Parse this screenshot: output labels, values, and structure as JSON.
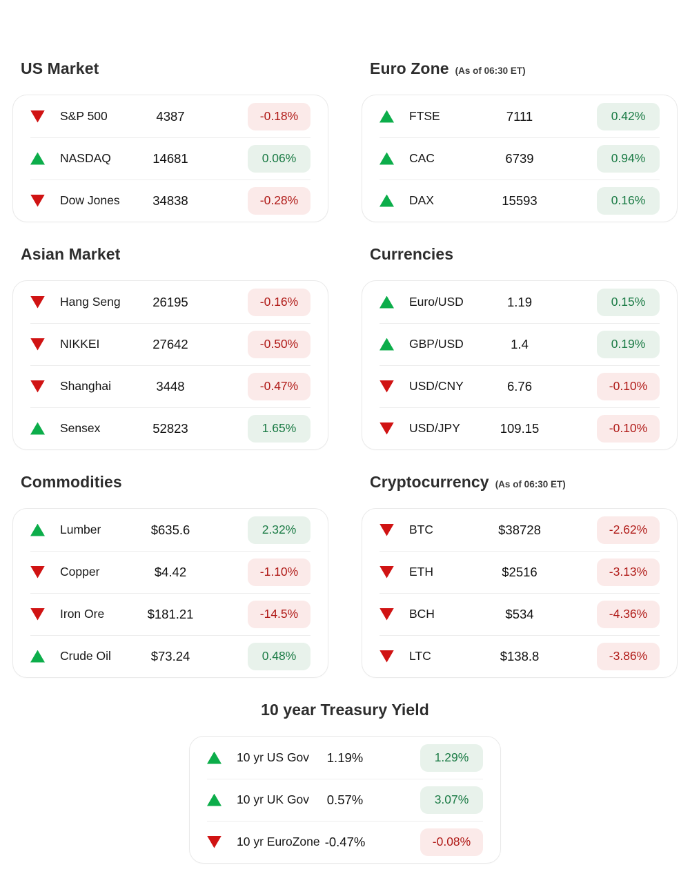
{
  "colors": {
    "up_icon": "#0CAD4A",
    "down_icon": "#D01313",
    "badge_up_bg": "#E8F2EB",
    "badge_up_text": "#1B7B45",
    "badge_down_bg": "#FBEAE9",
    "badge_down_text": "#B01A17"
  },
  "sections": [
    {
      "title": "US Market",
      "subtitle": "",
      "rows": [
        {
          "direction": "down",
          "label": "S&P 500",
          "value": "4387",
          "change": "-0.18%"
        },
        {
          "direction": "up",
          "label": "NASDAQ",
          "value": "14681",
          "change": "0.06%"
        },
        {
          "direction": "down",
          "label": "Dow Jones",
          "value": "34838",
          "change": "-0.28%"
        }
      ]
    },
    {
      "title": "Euro Zone",
      "subtitle": "(As of 06:30 ET)",
      "rows": [
        {
          "direction": "up",
          "label": "FTSE",
          "value": "7111",
          "change": "0.42%"
        },
        {
          "direction": "up",
          "label": "CAC",
          "value": "6739",
          "change": "0.94%"
        },
        {
          "direction": "up",
          "label": "DAX",
          "value": "15593",
          "change": "0.16%"
        }
      ]
    },
    {
      "title": "Asian Market",
      "subtitle": "",
      "rows": [
        {
          "direction": "down",
          "label": "Hang Seng",
          "value": "26195",
          "change": "-0.16%"
        },
        {
          "direction": "down",
          "label": "NIKKEI",
          "value": "27642",
          "change": "-0.50%"
        },
        {
          "direction": "down",
          "label": "Shanghai",
          "value": "3448",
          "change": "-0.47%"
        },
        {
          "direction": "up",
          "label": "Sensex",
          "value": "52823",
          "change": "1.65%"
        }
      ]
    },
    {
      "title": "Currencies",
      "subtitle": "",
      "rows": [
        {
          "direction": "up",
          "label": "Euro/USD",
          "value": "1.19",
          "change": "0.15%"
        },
        {
          "direction": "up",
          "label": "GBP/USD",
          "value": "1.4",
          "change": "0.19%"
        },
        {
          "direction": "down",
          "label": "USD/CNY",
          "value": "6.76",
          "change": "-0.10%"
        },
        {
          "direction": "down",
          "label": "USD/JPY",
          "value": "109.15",
          "change": "-0.10%"
        }
      ]
    },
    {
      "title": "Commodities",
      "subtitle": "",
      "rows": [
        {
          "direction": "up",
          "label": "Lumber",
          "value": "$635.6",
          "change": "2.32%"
        },
        {
          "direction": "down",
          "label": "Copper",
          "value": "$4.42",
          "change": "-1.10%"
        },
        {
          "direction": "down",
          "label": "Iron Ore",
          "value": "$181.21",
          "change": "-14.5%"
        },
        {
          "direction": "up",
          "label": "Crude Oil",
          "value": "$73.24",
          "change": "0.48%"
        }
      ]
    },
    {
      "title": "Cryptocurrency",
      "subtitle": "(As of 06:30 ET)",
      "rows": [
        {
          "direction": "down",
          "label": "BTC",
          "value": "$38728",
          "change": "-2.62%"
        },
        {
          "direction": "down",
          "label": "ETH",
          "value": "$2516",
          "change": "-3.13%"
        },
        {
          "direction": "down",
          "label": "BCH",
          "value": "$534",
          "change": "-4.36%"
        },
        {
          "direction": "down",
          "label": "LTC",
          "value": "$138.8",
          "change": "-3.86%"
        }
      ]
    },
    {
      "title": "10 year Treasury Yield",
      "subtitle": "",
      "centered": true,
      "rows": [
        {
          "direction": "up",
          "label": "10 yr US Gov",
          "value": "1.19%",
          "change": "1.29%"
        },
        {
          "direction": "up",
          "label": "10 yr UK Gov",
          "value": "0.57%",
          "change": "3.07%"
        },
        {
          "direction": "down",
          "label": "10 yr EuroZone",
          "value": "-0.47%",
          "change": "-0.08%"
        }
      ]
    }
  ]
}
